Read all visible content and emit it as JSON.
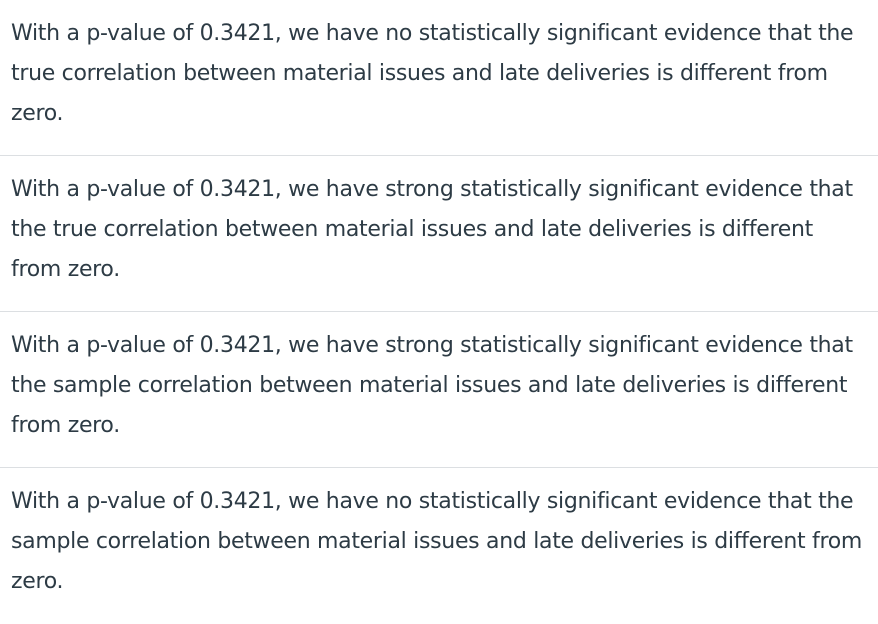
{
  "options": [
    "With a p-value of 0.3421, we have no statistically significant evidence that the true correlation between material issues and late deliveries is different from zero.",
    "With a p-value of 0.3421, we have strong statistically significant evidence that the true correlation between material issues and late deliveries is different from zero.",
    "With a p-value of 0.3421, we have strong statistically significant evidence that the sample correlation between material issues and late deliveries is different from zero.",
    "With a p-value of 0.3421, we have no statistically significant evidence that the sample correlation between material issues and late deliveries is different from zero."
  ]
}
